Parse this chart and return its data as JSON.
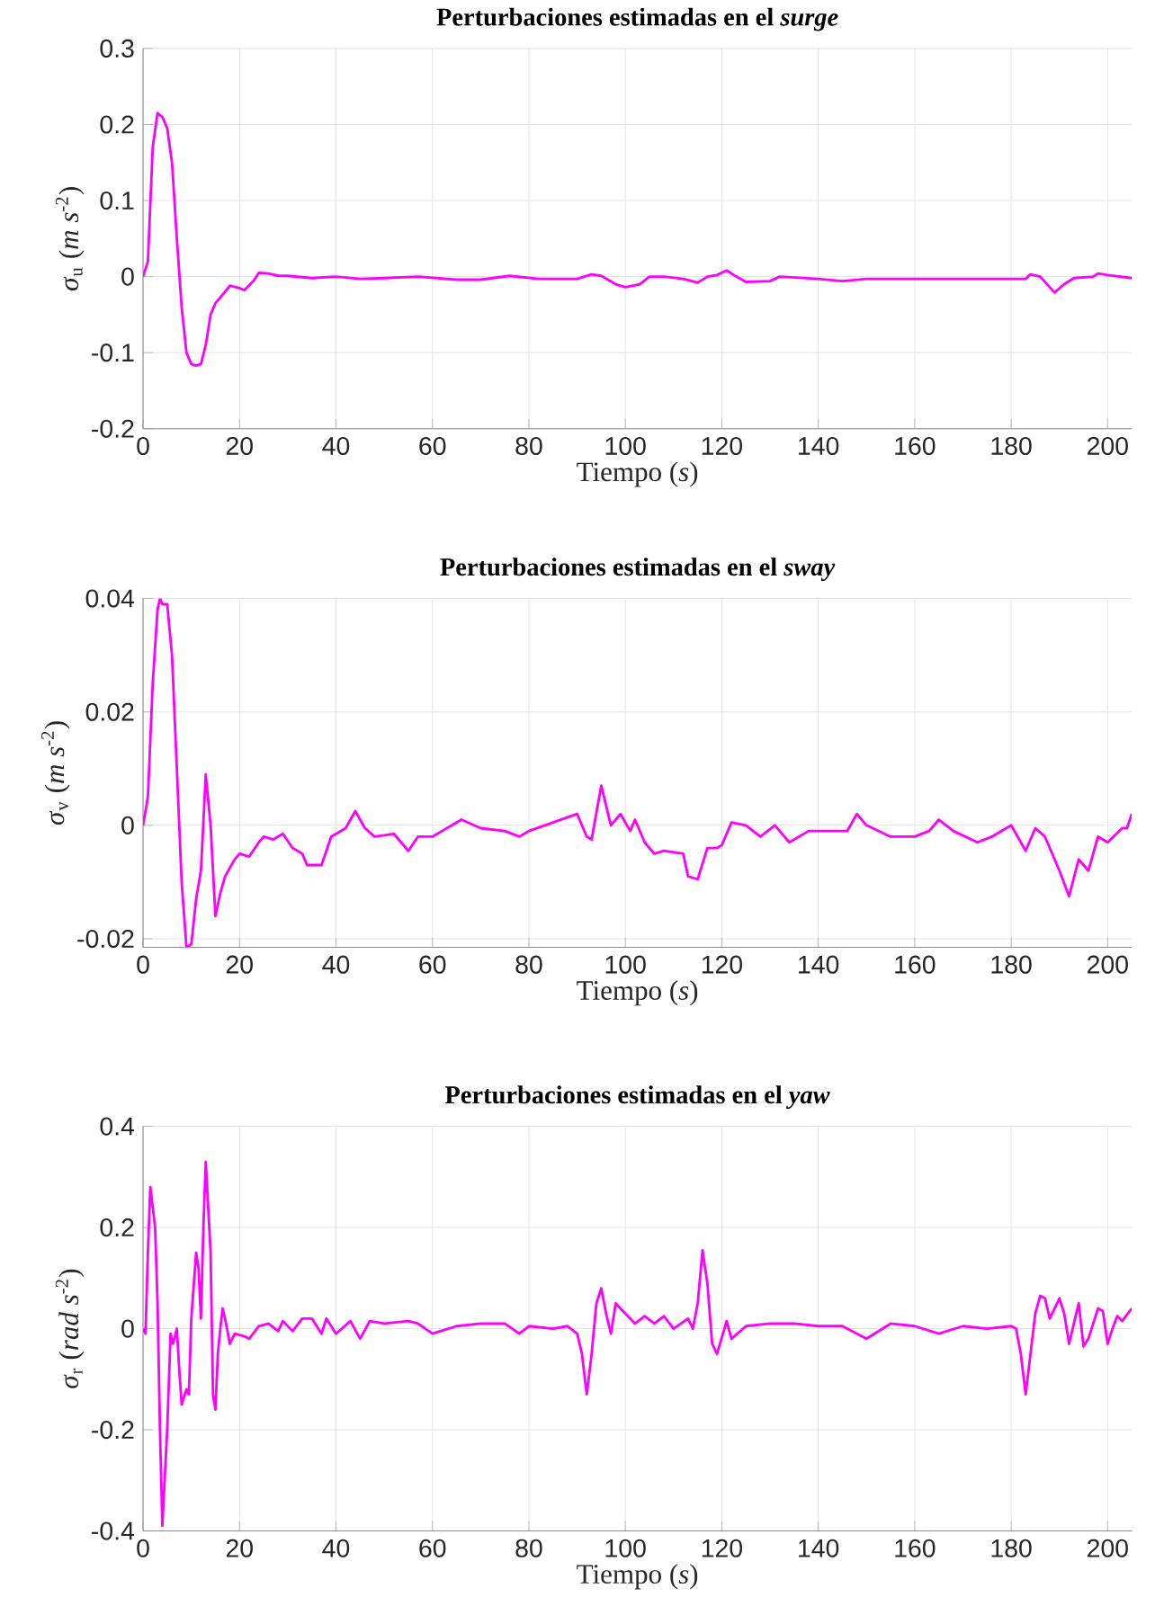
{
  "chart_data": [
    {
      "type": "line",
      "title": "Perturbaciones estimadas en el *surge*",
      "xlabel": "Tiempo (*s*)",
      "ylabel": "*σ*$_{u}$ (*m s*$^{-2}$)",
      "x": [
        0,
        1,
        2,
        3,
        4,
        5,
        6,
        7,
        8,
        9,
        10,
        11,
        12,
        13,
        14,
        15,
        17,
        18,
        20,
        21,
        23,
        24,
        26,
        28,
        30,
        35,
        40,
        45,
        50,
        57,
        65,
        70,
        76,
        82,
        90,
        93,
        95,
        98,
        100,
        103,
        105,
        108,
        112,
        115,
        117,
        119,
        121,
        123,
        125,
        130,
        132,
        140,
        145,
        150,
        160,
        170,
        183,
        184,
        186,
        189,
        191,
        193,
        197,
        198,
        200,
        205
      ],
      "series": [
        {
          "color": "#ff00ff",
          "values": [
            0,
            0.02,
            0.17,
            0.215,
            0.21,
            0.195,
            0.15,
            0.05,
            -0.04,
            -0.1,
            -0.115,
            -0.117,
            -0.115,
            -0.09,
            -0.05,
            -0.035,
            -0.02,
            -0.012,
            -0.015,
            -0.018,
            -0.005,
            0.005,
            0.004,
            0.001,
            0.001,
            -0.002,
            0,
            -0.003,
            -0.002,
            0,
            -0.004,
            -0.004,
            0.001,
            -0.003,
            -0.003,
            0.003,
            0.001,
            -0.01,
            -0.014,
            -0.01,
            0,
            0,
            -0.003,
            -0.008,
            0,
            0.002,
            0.008,
            0,
            -0.007,
            -0.006,
            0,
            -0.003,
            -0.006,
            -0.003,
            -0.003,
            -0.003,
            -0.003,
            0.003,
            0,
            -0.021,
            -0.01,
            -0.002,
            0,
            0.004,
            0.002,
            -0.002
          ]
        }
      ],
      "xlim": [
        0,
        205
      ],
      "ylim": [
        -0.2,
        0.3
      ],
      "xticks": [
        0,
        20,
        40,
        60,
        80,
        100,
        120,
        140,
        160,
        180,
        200
      ],
      "yticks": [
        -0.2,
        -0.1,
        0,
        0.1,
        0.2,
        0.3
      ],
      "grid": true
    },
    {
      "type": "line",
      "title": "Perturbaciones estimadas en el *sway*",
      "xlabel": "Tiempo (*s*)",
      "ylabel": "*σ*$_{v}$ (*m s*$^{-2}$)",
      "x": [
        0,
        1,
        2,
        3,
        3.5,
        4,
        5,
        6,
        7,
        8,
        9,
        10,
        11,
        12,
        13,
        14,
        15,
        16,
        17,
        19,
        20,
        22,
        24,
        25,
        27,
        29,
        31,
        33,
        34,
        36,
        37,
        39,
        42,
        44,
        46,
        48,
        52,
        55,
        57,
        60,
        62,
        66,
        70,
        75,
        78,
        80,
        85,
        90,
        92,
        93,
        95,
        97,
        99,
        101,
        102,
        104,
        106,
        108,
        112,
        113,
        115,
        117,
        119,
        120,
        122,
        125,
        128,
        131,
        134,
        138,
        142,
        146,
        148,
        150,
        155,
        160,
        163,
        165,
        168,
        173,
        176,
        180,
        183,
        185,
        187,
        190,
        192,
        194,
        196,
        198,
        200,
        203,
        204,
        205
      ],
      "series": [
        {
          "color": "#ff00ff",
          "values": [
            0,
            0.005,
            0.025,
            0.038,
            0.04,
            0.039,
            0.039,
            0.03,
            0.01,
            -0.01,
            -0.0215,
            -0.021,
            -0.013,
            -0.008,
            0.009,
            0,
            -0.016,
            -0.012,
            -0.009,
            -0.006,
            -0.005,
            -0.0055,
            -0.003,
            -0.002,
            -0.0025,
            -0.0015,
            -0.004,
            -0.005,
            -0.007,
            -0.007,
            -0.007,
            -0.002,
            -0.0005,
            0.0025,
            -0.0005,
            -0.002,
            -0.0015,
            -0.0045,
            -0.002,
            -0.002,
            -0.001,
            0.001,
            -0.0005,
            -0.001,
            -0.002,
            -0.001,
            0.0005,
            0.002,
            -0.002,
            -0.0025,
            0.007,
            0,
            0.002,
            -0.001,
            0.001,
            -0.003,
            -0.005,
            -0.0045,
            -0.005,
            -0.009,
            -0.0095,
            -0.004,
            -0.004,
            -0.0035,
            0.0005,
            0,
            -0.002,
            0,
            -0.003,
            -0.001,
            -0.001,
            -0.001,
            0.002,
            0,
            -0.002,
            -0.002,
            -0.001,
            0.001,
            -0.001,
            -0.003,
            -0.002,
            0,
            -0.0045,
            -0.0005,
            -0.002,
            -0.008,
            -0.0125,
            -0.006,
            -0.008,
            -0.002,
            -0.003,
            -0.0005,
            -0.0005,
            0.002
          ]
        }
      ],
      "xlim": [
        0,
        205
      ],
      "ylim": [
        -0.0215,
        0.04
      ],
      "xticks": [
        0,
        20,
        40,
        60,
        80,
        100,
        120,
        140,
        160,
        180,
        200
      ],
      "yticks": [
        -0.02,
        0,
        0.02,
        0.04
      ],
      "grid": true
    },
    {
      "type": "line",
      "title": "Perturbaciones estimadas en el *yaw*",
      "xlabel": "Tiempo (*s*)",
      "ylabel": "*σ*$_{r}$ (*rad s*$^{-2}$)",
      "x": [
        0,
        0.5,
        1,
        1.5,
        2.5,
        3,
        3.5,
        4,
        5,
        5.7,
        6.2,
        7,
        7.5,
        8,
        9,
        9.5,
        10,
        11,
        11.5,
        12,
        12.5,
        13,
        14,
        14.5,
        15,
        15.5,
        16,
        16.5,
        17,
        18,
        19,
        21,
        22,
        24,
        26,
        28,
        29,
        31,
        33,
        35,
        37,
        38,
        40,
        43,
        45,
        47,
        50,
        55,
        57,
        60,
        65,
        70,
        75,
        78,
        80,
        85,
        88,
        90,
        91,
        92,
        93,
        94,
        95,
        96,
        97,
        98,
        100,
        102,
        104,
        106,
        108,
        110,
        113,
        114,
        115,
        116,
        117,
        118,
        119,
        121,
        122,
        125,
        130,
        135,
        140,
        145,
        150,
        155,
        160,
        165,
        170,
        175,
        180,
        181,
        182,
        183,
        184,
        185,
        186,
        187,
        188,
        190,
        191,
        192,
        193,
        194,
        195,
        196,
        198,
        199,
        200,
        201,
        202,
        203,
        205
      ],
      "series": [
        {
          "color": "#ff00ff",
          "values": [
            0,
            -0.01,
            0.15,
            0.28,
            0.2,
            0.05,
            -0.2,
            -0.39,
            -0.2,
            -0.01,
            -0.03,
            0,
            -0.08,
            -0.15,
            -0.12,
            -0.13,
            0.02,
            0.15,
            0.12,
            0.02,
            0.2,
            0.33,
            0.15,
            -0.13,
            -0.16,
            -0.05,
            0,
            0.04,
            0.02,
            -0.03,
            -0.01,
            -0.015,
            -0.02,
            0.005,
            0.01,
            -0.005,
            0.015,
            -0.005,
            0.02,
            0.02,
            -0.01,
            0.02,
            -0.01,
            0.015,
            -0.02,
            0.015,
            0.01,
            0.015,
            0.01,
            -0.01,
            0.005,
            0.01,
            0.01,
            -0.01,
            0.005,
            0,
            0.005,
            -0.01,
            -0.05,
            -0.13,
            -0.05,
            0.05,
            0.08,
            0.03,
            -0.01,
            0.05,
            0.03,
            0.01,
            0.025,
            0.01,
            0.025,
            0,
            0.02,
            0,
            0.05,
            0.155,
            0.09,
            -0.03,
            -0.05,
            0.015,
            -0.02,
            0.005,
            0.01,
            0.01,
            0.005,
            0.005,
            -0.02,
            0.01,
            0.005,
            -0.01,
            0.005,
            0,
            0.005,
            0,
            -0.05,
            -0.13,
            -0.05,
            0.03,
            0.065,
            0.06,
            0.02,
            0.06,
            0.03,
            -0.03,
            0.01,
            0.05,
            -0.035,
            -0.02,
            0.04,
            0.035,
            -0.03,
            0,
            0.025,
            0.015,
            0.04
          ]
        }
      ],
      "xlim": [
        0,
        205
      ],
      "ylim": [
        -0.4,
        0.4
      ],
      "xticks": [
        0,
        20,
        40,
        60,
        80,
        100,
        120,
        140,
        160,
        180,
        200
      ],
      "yticks": [
        -0.4,
        -0.2,
        0,
        0.2,
        0.4
      ],
      "grid": true
    }
  ]
}
